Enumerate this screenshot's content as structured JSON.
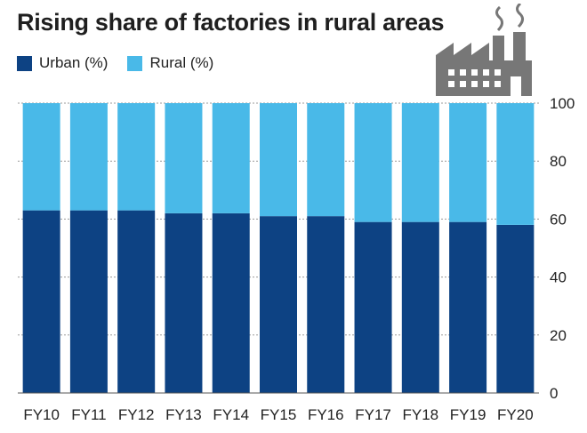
{
  "chart_data": {
    "type": "bar",
    "stacked": true,
    "title": "Rising share of factories in rural areas",
    "xlabel": "",
    "ylabel": "",
    "categories": [
      "FY10",
      "FY11",
      "FY12",
      "FY13",
      "FY14",
      "FY15",
      "FY16",
      "FY17",
      "FY18",
      "FY19",
      "FY20"
    ],
    "series": [
      {
        "name": "Urban (%)",
        "color": "#0d4283",
        "values": [
          63,
          63,
          63,
          62,
          62,
          61,
          61,
          59,
          59,
          59,
          58
        ]
      },
      {
        "name": "Rural (%)",
        "color": "#49b9e8",
        "values": [
          37,
          37,
          37,
          38,
          38,
          39,
          39,
          41,
          41,
          41,
          42
        ]
      }
    ],
    "ylim": [
      0,
      100
    ],
    "yticks": [
      "0",
      "20",
      "40",
      "60",
      "80",
      "100"
    ],
    "y_axis_side": "right",
    "grid": true,
    "legend_position": "top-left"
  },
  "icon": {
    "name": "factory-icon",
    "color": "#777777"
  }
}
